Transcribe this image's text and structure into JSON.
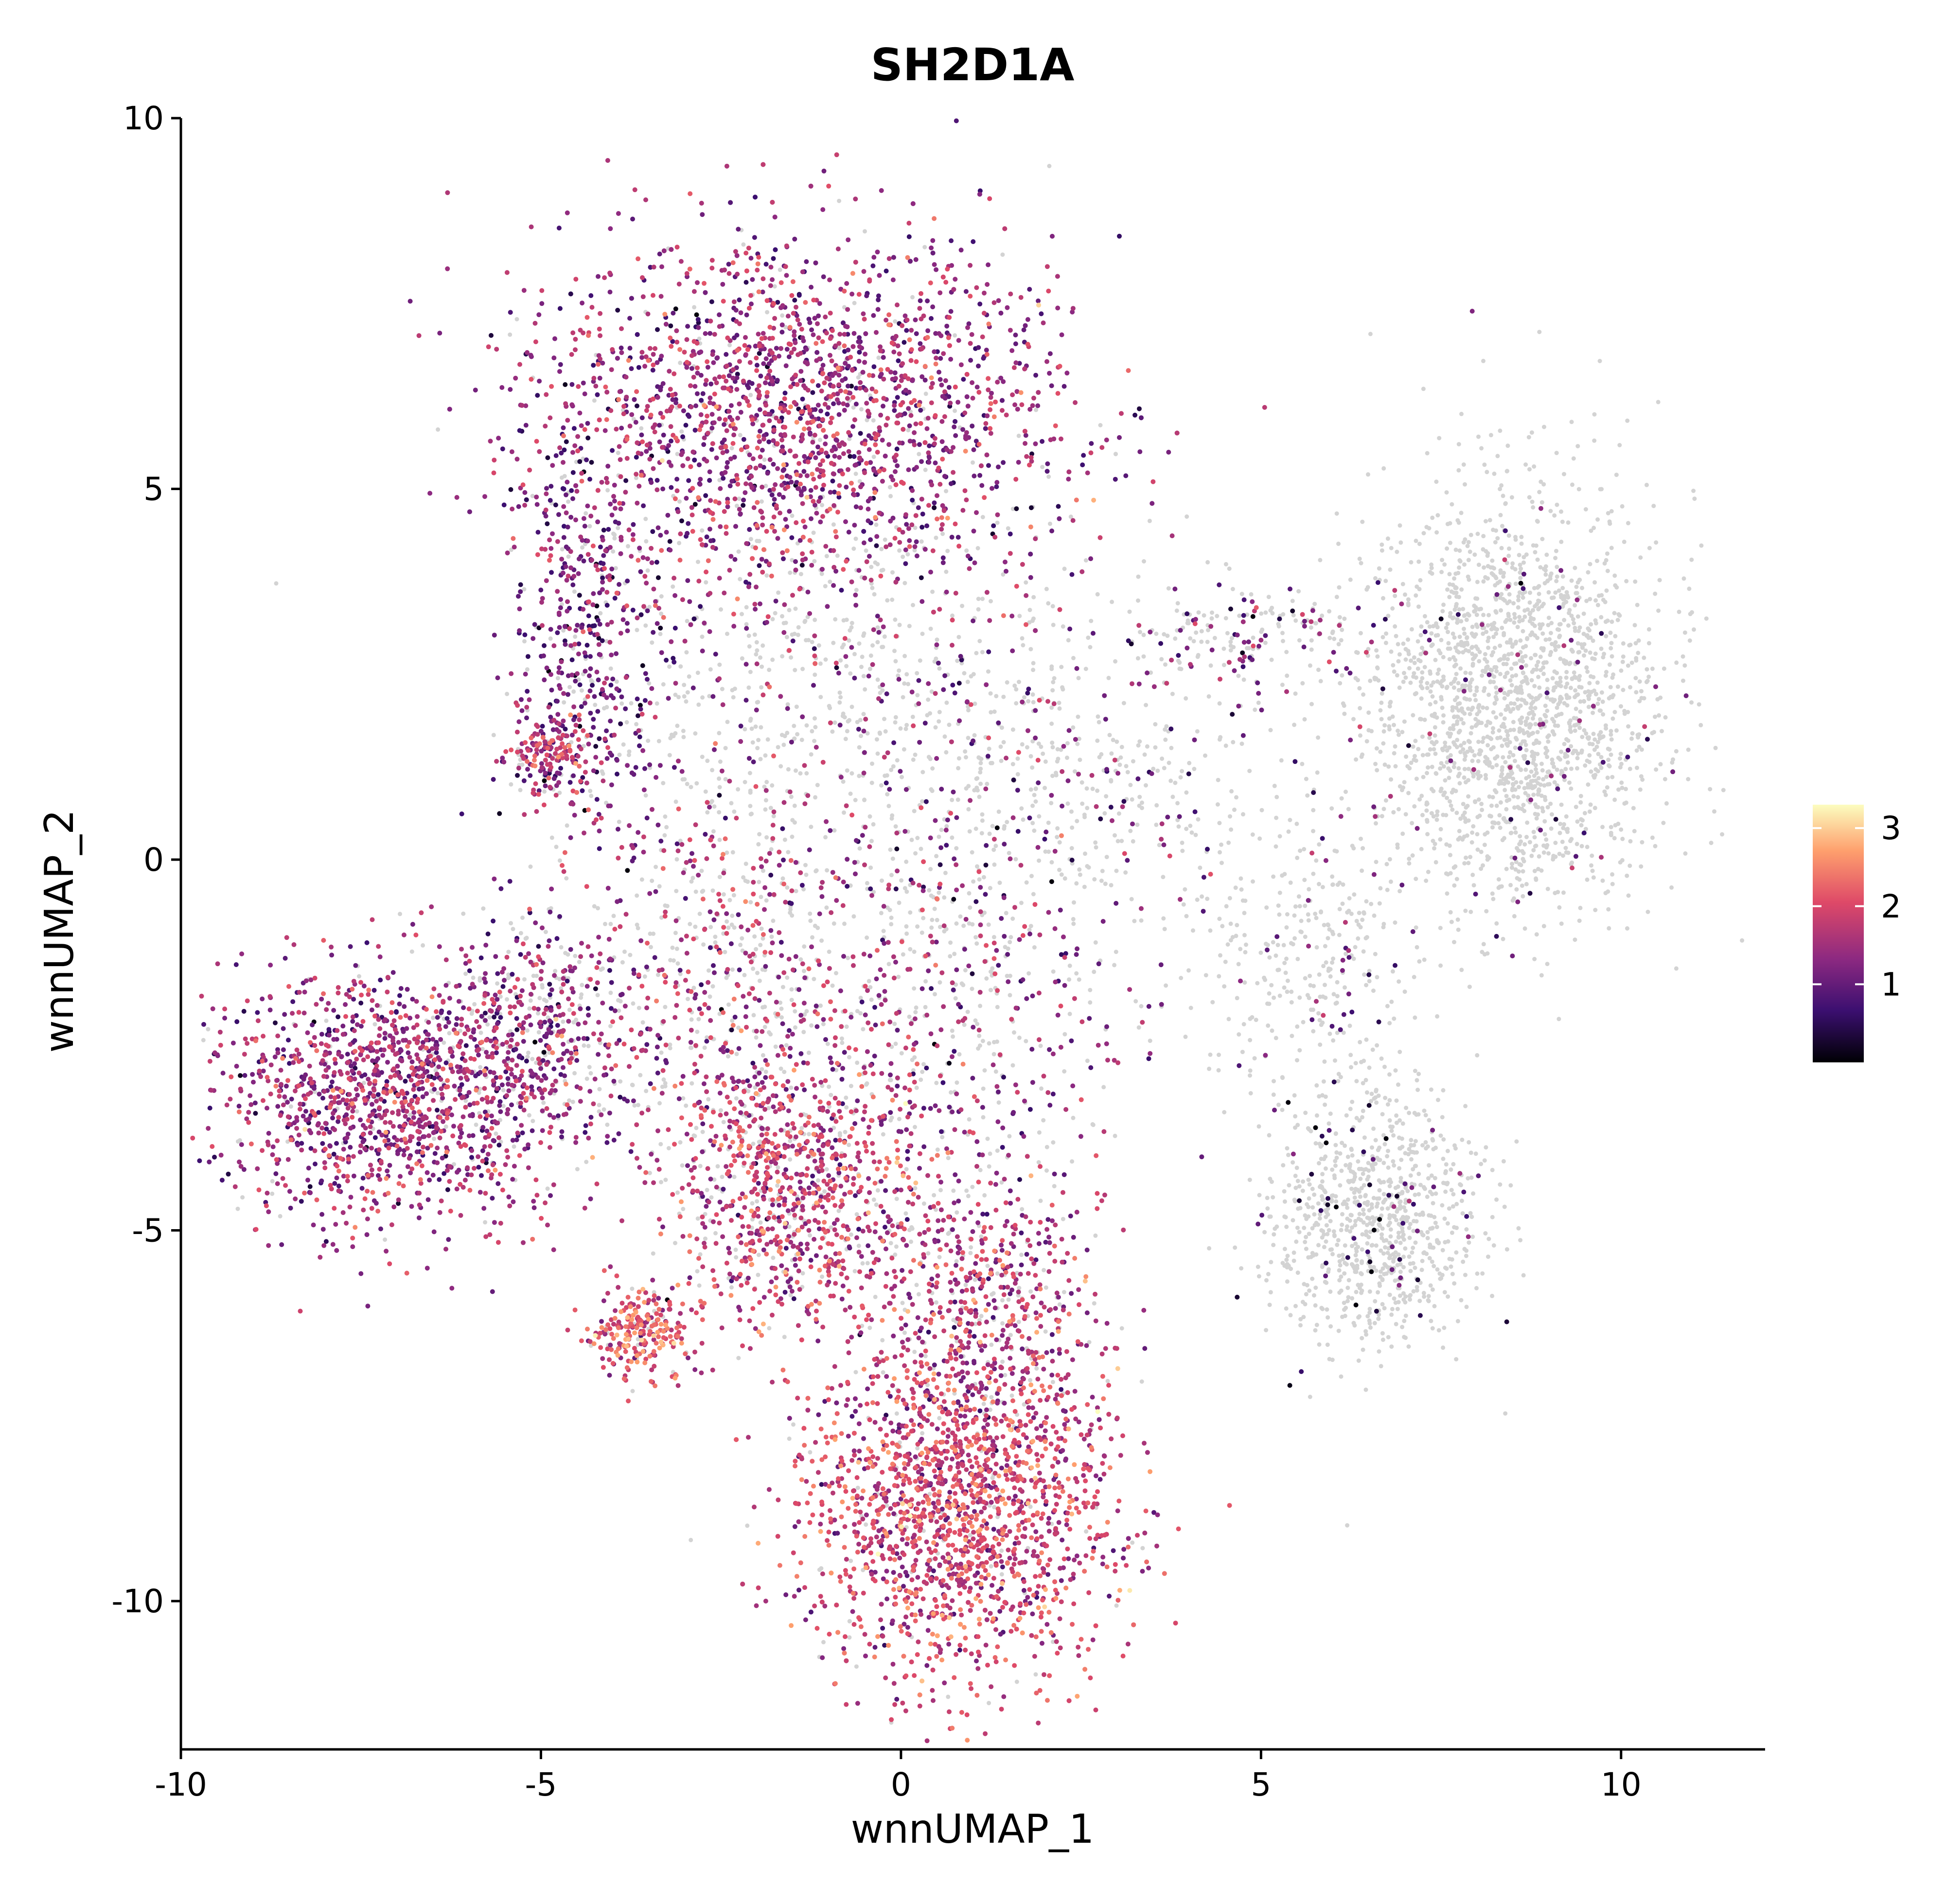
{
  "chart_data": {
    "type": "scatter",
    "title": "SH2D1A",
    "xlabel": "wnnUMAP_1",
    "ylabel": "wnnUMAP_2",
    "xlim": [
      -10,
      12
    ],
    "ylim": [
      -12,
      10
    ],
    "x_ticks": [
      -10,
      -5,
      0,
      5,
      10
    ],
    "x_tick_labels": [
      "-10",
      "-5",
      "0",
      "5",
      "10"
    ],
    "y_ticks": [
      -10,
      -5,
      0,
      5,
      10
    ],
    "y_tick_labels": [
      "-10",
      "-5",
      "0",
      "5",
      "10"
    ],
    "grid": false,
    "legend_placement": "right",
    "colorbar": {
      "min": 0,
      "max": 3.3,
      "ticks": [
        1,
        2,
        3
      ],
      "tick_labels": [
        "1",
        "2",
        "3"
      ],
      "colormap": [
        "#000004",
        "#3b0f70",
        "#8c2981",
        "#de4968",
        "#fe9f6d",
        "#fcfdbf"
      ]
    },
    "unexpressed_color": "#d3d3d3",
    "clusters": [
      {
        "cx": -1.4,
        "cy": 6.0,
        "sx": 1.8,
        "sy": 1.2,
        "n": 2200,
        "frac_expr": 0.95,
        "mean": 1.4
      },
      {
        "cx": -4.4,
        "cy": 3.2,
        "sx": 0.55,
        "sy": 1.5,
        "n": 500,
        "frac_expr": 0.85,
        "mean": 1.1
      },
      {
        "cx": -1.0,
        "cy": 2.5,
        "sx": 1.6,
        "sy": 1.6,
        "n": 700,
        "frac_expr": 0.25,
        "mean": 1.2
      },
      {
        "cx": -4.9,
        "cy": 1.4,
        "sx": 0.3,
        "sy": 0.25,
        "n": 150,
        "frac_expr": 0.9,
        "mean": 1.6
      },
      {
        "cx": -7.0,
        "cy": -3.2,
        "sx": 1.2,
        "sy": 0.85,
        "n": 1400,
        "frac_expr": 0.95,
        "mean": 1.4
      },
      {
        "cx": -5.0,
        "cy": -2.2,
        "sx": 0.8,
        "sy": 0.8,
        "n": 450,
        "frac_expr": 0.6,
        "mean": 1.3
      },
      {
        "cx": -1.5,
        "cy": -4.4,
        "sx": 0.85,
        "sy": 0.9,
        "n": 900,
        "frac_expr": 0.85,
        "mean": 1.7
      },
      {
        "cx": -2.4,
        "cy": -1.5,
        "sx": 0.9,
        "sy": 1.6,
        "n": 600,
        "frac_expr": 0.55,
        "mean": 1.5
      },
      {
        "cx": 0.8,
        "cy": -8.8,
        "sx": 1.05,
        "sy": 1.1,
        "n": 2000,
        "frac_expr": 0.95,
        "mean": 1.8
      },
      {
        "cx": 1.2,
        "cy": -6.0,
        "sx": 0.8,
        "sy": 0.9,
        "n": 600,
        "frac_expr": 0.8,
        "mean": 1.6
      },
      {
        "cx": -3.6,
        "cy": -6.4,
        "sx": 0.35,
        "sy": 0.3,
        "n": 250,
        "frac_expr": 0.9,
        "mean": 2.0
      },
      {
        "cx": 0.6,
        "cy": -2.0,
        "sx": 1.3,
        "sy": 1.5,
        "n": 600,
        "frac_expr": 0.55,
        "mean": 1.3
      },
      {
        "cx": 2.5,
        "cy": 1.0,
        "sx": 1.3,
        "sy": 1.3,
        "n": 450,
        "frac_expr": 0.2,
        "mean": 1.1
      },
      {
        "cx": 8.5,
        "cy": 2.1,
        "sx": 1.0,
        "sy": 1.4,
        "n": 2000,
        "frac_expr": 0.03,
        "mean": 1.0
      },
      {
        "cx": 6.6,
        "cy": -4.9,
        "sx": 0.7,
        "sy": 0.85,
        "n": 900,
        "frac_expr": 0.06,
        "mean": 0.6
      },
      {
        "cx": 5.8,
        "cy": -1.3,
        "sx": 0.8,
        "sy": 1.0,
        "n": 300,
        "frac_expr": 0.08,
        "mean": 1.0
      },
      {
        "cx": 4.8,
        "cy": 3.0,
        "sx": 1.0,
        "sy": 0.35,
        "n": 200,
        "frac_expr": 0.35,
        "mean": 1.1
      }
    ]
  }
}
